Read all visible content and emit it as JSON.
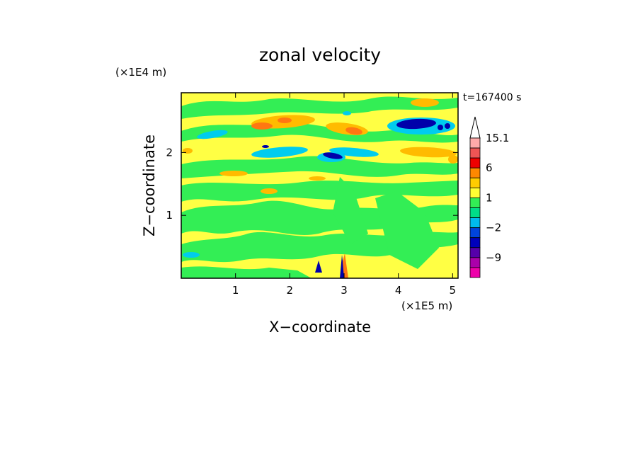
{
  "chart_data": {
    "type": "heatmap",
    "title": "zonal velocity",
    "xlabel": "X−coordinate",
    "ylabel": "Z−coordinate",
    "x_scale_label": "(×1E5 m)",
    "y_scale_label": "(×1E4 m)",
    "time_label": "t=167400 s",
    "x_ticks": [
      1,
      2,
      3,
      4,
      5
    ],
    "y_ticks": [
      1,
      2
    ],
    "x_range": [
      0,
      5.1
    ],
    "y_range": [
      0,
      2.95
    ],
    "colorbar": {
      "tick_labels": [
        "15.1",
        "6",
        "1",
        "−2",
        "−9"
      ],
      "tick_values": [
        15.1,
        6,
        1,
        -2,
        -9
      ],
      "levels": [
        -15,
        -12,
        -9,
        -6,
        -3,
        -2,
        -1,
        0,
        1,
        2,
        3,
        6,
        9,
        12,
        15.1
      ],
      "colors": [
        "#ee00aa",
        "#aa00aa",
        "#5500aa",
        "#0000bb",
        "#0044dd",
        "#00bbee",
        "#00dd88",
        "#33ee55",
        "#ffff33",
        "#ffcc00",
        "#ff8800",
        "#ee0000",
        "#ee5555",
        "#ffaaaa"
      ],
      "extend_max_color": "#ffffff"
    },
    "field_description_colors": {
      "background": "#ffff44",
      "green": "#33ee55",
      "cyan": "#00ccee",
      "orange": "#ffbb00",
      "red_orange": "#ff7711",
      "blue": "#0000aa"
    }
  }
}
